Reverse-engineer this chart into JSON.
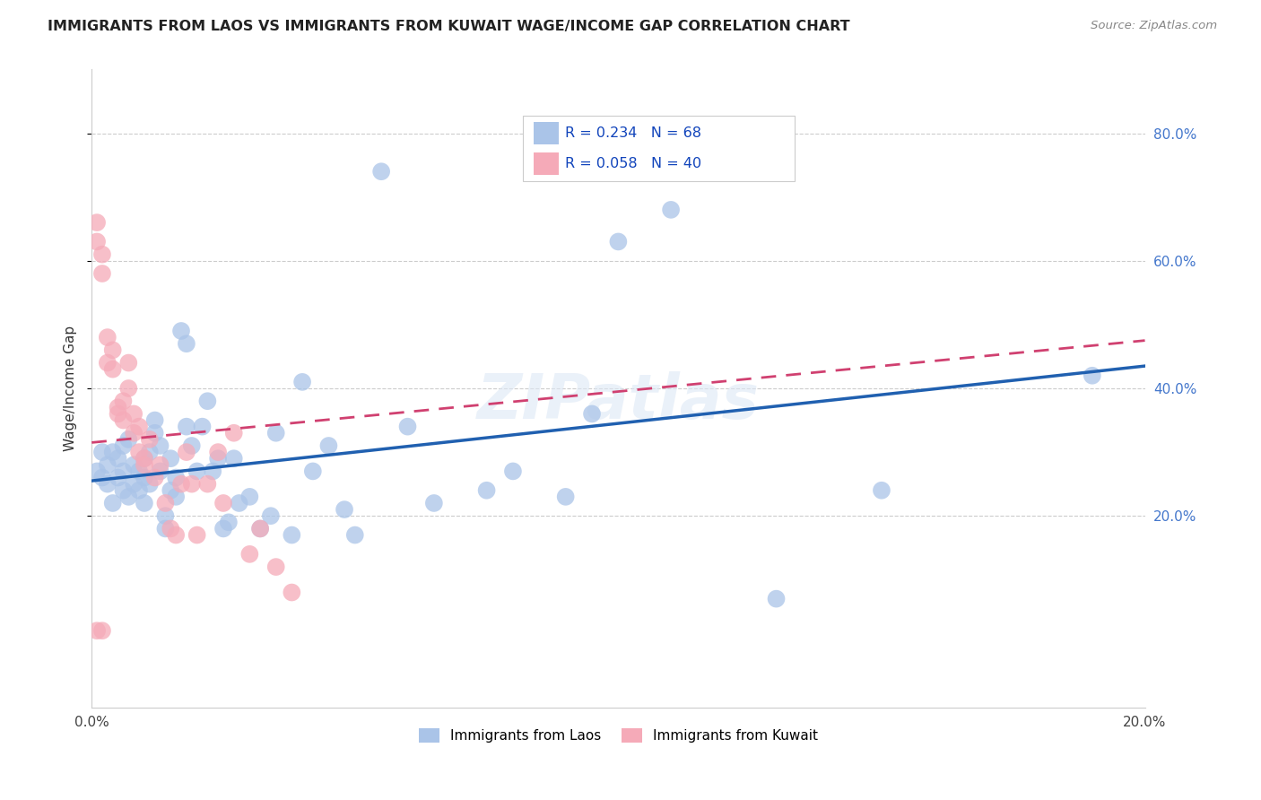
{
  "title": "IMMIGRANTS FROM LAOS VS IMMIGRANTS FROM KUWAIT WAGE/INCOME GAP CORRELATION CHART",
  "source": "Source: ZipAtlas.com",
  "ylabel": "Wage/Income Gap",
  "xlim": [
    0.0,
    0.2
  ],
  "ylim": [
    -0.1,
    0.9
  ],
  "yticks_right": [
    0.2,
    0.4,
    0.6,
    0.8
  ],
  "ytick_right_labels": [
    "20.0%",
    "40.0%",
    "60.0%",
    "80.0%"
  ],
  "grid_color": "#cccccc",
  "background_color": "#ffffff",
  "laos_color": "#aac4e8",
  "laos_line_color": "#2060b0",
  "kuwait_color": "#f5aab8",
  "kuwait_line_color": "#d04070",
  "laos_R": 0.234,
  "laos_N": 68,
  "kuwait_R": 0.058,
  "kuwait_N": 40,
  "laos_scatter_x": [
    0.001,
    0.002,
    0.002,
    0.003,
    0.003,
    0.004,
    0.004,
    0.005,
    0.005,
    0.006,
    0.006,
    0.006,
    0.007,
    0.007,
    0.008,
    0.008,
    0.009,
    0.009,
    0.01,
    0.01,
    0.01,
    0.011,
    0.011,
    0.012,
    0.012,
    0.013,
    0.013,
    0.014,
    0.014,
    0.015,
    0.015,
    0.016,
    0.016,
    0.017,
    0.018,
    0.018,
    0.019,
    0.02,
    0.021,
    0.022,
    0.023,
    0.024,
    0.025,
    0.026,
    0.027,
    0.028,
    0.03,
    0.032,
    0.034,
    0.035,
    0.038,
    0.04,
    0.042,
    0.045,
    0.048,
    0.05,
    0.055,
    0.06,
    0.065,
    0.075,
    0.08,
    0.09,
    0.095,
    0.1,
    0.11,
    0.13,
    0.15,
    0.19
  ],
  "laos_scatter_y": [
    0.27,
    0.26,
    0.3,
    0.25,
    0.28,
    0.22,
    0.3,
    0.26,
    0.29,
    0.24,
    0.27,
    0.31,
    0.23,
    0.32,
    0.25,
    0.28,
    0.24,
    0.27,
    0.26,
    0.29,
    0.22,
    0.25,
    0.3,
    0.33,
    0.35,
    0.27,
    0.31,
    0.2,
    0.18,
    0.24,
    0.29,
    0.23,
    0.26,
    0.49,
    0.47,
    0.34,
    0.31,
    0.27,
    0.34,
    0.38,
    0.27,
    0.29,
    0.18,
    0.19,
    0.29,
    0.22,
    0.23,
    0.18,
    0.2,
    0.33,
    0.17,
    0.41,
    0.27,
    0.31,
    0.21,
    0.17,
    0.74,
    0.34,
    0.22,
    0.24,
    0.27,
    0.23,
    0.36,
    0.63,
    0.68,
    0.07,
    0.24,
    0.42
  ],
  "kuwait_scatter_x": [
    0.001,
    0.001,
    0.002,
    0.002,
    0.003,
    0.003,
    0.004,
    0.004,
    0.005,
    0.005,
    0.006,
    0.006,
    0.007,
    0.007,
    0.008,
    0.008,
    0.009,
    0.009,
    0.01,
    0.01,
    0.011,
    0.012,
    0.013,
    0.014,
    0.015,
    0.016,
    0.017,
    0.018,
    0.019,
    0.02,
    0.022,
    0.024,
    0.025,
    0.027,
    0.03,
    0.032,
    0.035,
    0.038,
    0.002,
    0.001
  ],
  "kuwait_scatter_y": [
    0.63,
    0.66,
    0.58,
    0.61,
    0.48,
    0.44,
    0.43,
    0.46,
    0.37,
    0.36,
    0.38,
    0.35,
    0.4,
    0.44,
    0.36,
    0.33,
    0.34,
    0.3,
    0.29,
    0.28,
    0.32,
    0.26,
    0.28,
    0.22,
    0.18,
    0.17,
    0.25,
    0.3,
    0.25,
    0.17,
    0.25,
    0.3,
    0.22,
    0.33,
    0.14,
    0.18,
    0.12,
    0.08,
    0.02,
    0.02
  ],
  "laos_line_x0": 0.0,
  "laos_line_y0": 0.255,
  "laos_line_x1": 0.2,
  "laos_line_y1": 0.435,
  "kuwait_line_x0": 0.0,
  "kuwait_line_y0": 0.315,
  "kuwait_line_x1": 0.2,
  "kuwait_line_y1": 0.475
}
